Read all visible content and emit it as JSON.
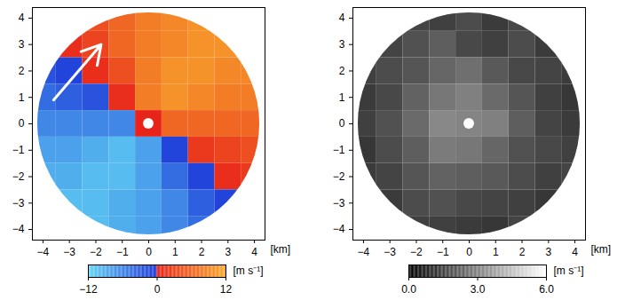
{
  "chart_data": [
    {
      "type": "heatmap",
      "x": [
        -4,
        -3,
        -2,
        -1,
        0,
        1,
        2,
        3,
        4
      ],
      "y": [
        4,
        3,
        2,
        1,
        0,
        -1,
        -2,
        -3,
        -4
      ],
      "values": [
        [
          null,
          null,
          4,
          6,
          8,
          9,
          10,
          null,
          null
        ],
        [
          null,
          1,
          3,
          6,
          8,
          9,
          10,
          10,
          null
        ],
        [
          -2,
          -1,
          1,
          4,
          8,
          10,
          10,
          9,
          9
        ],
        [
          -4,
          -3,
          -2,
          1,
          8,
          10,
          9,
          8,
          8
        ],
        [
          -6,
          -6,
          -6,
          -6,
          0,
          6,
          6,
          6,
          6
        ],
        [
          -8,
          -8,
          -9,
          -10,
          -8,
          -1,
          2,
          3,
          4
        ],
        [
          -9,
          -9,
          -10,
          -10,
          -8,
          -4,
          -1,
          1,
          2
        ],
        [
          null,
          -10,
          -10,
          -9,
          -8,
          -6,
          -3,
          -1,
          null
        ],
        [
          null,
          null,
          -10,
          -9,
          -8,
          -6,
          -4,
          null,
          null
        ]
      ],
      "xlim": [
        -4.4,
        4.4
      ],
      "ylim": [
        -4.4,
        4.4
      ],
      "xticks": [
        -4,
        -3,
        -2,
        -1,
        0,
        1,
        2,
        3,
        4
      ],
      "yticks": [
        -4,
        -3,
        -2,
        -1,
        0,
        1,
        2,
        3,
        4
      ],
      "x_label": "[km]",
      "radius": 4.2,
      "blind_radius": 0.2,
      "arrow": {
        "x1": -3.6,
        "y1": 0.9,
        "x2": -1.8,
        "y2": 3.0
      },
      "colorbar": {
        "range": [
          -12,
          12
        ],
        "ticks": [
          -12,
          0,
          12
        ],
        "label": "[m s⁻¹]",
        "colors": [
          "#62d6f4",
          "#1d37d8",
          "#e8231a",
          "#f8a82c"
        ]
      }
    },
    {
      "type": "heatmap",
      "x": [
        -4,
        -3,
        -2,
        -1,
        0,
        1,
        2,
        3,
        4
      ],
      "y": [
        4,
        3,
        2,
        1,
        0,
        -1,
        -2,
        -3,
        -4
      ],
      "values": [
        [
          null,
          null,
          1.6,
          1.5,
          1.8,
          1.4,
          1.7,
          null,
          null
        ],
        [
          null,
          1.6,
          1.9,
          2.2,
          1.7,
          1.5,
          1.8,
          1.4,
          null
        ],
        [
          1.5,
          1.8,
          2.0,
          2.4,
          2.6,
          2.1,
          1.7,
          1.6,
          1.4
        ],
        [
          1.4,
          1.7,
          2.3,
          2.8,
          3.0,
          2.5,
          2.0,
          1.5,
          1.3
        ],
        [
          1.5,
          1.9,
          2.5,
          3.2,
          3.1,
          3.0,
          2.2,
          1.6,
          1.4
        ],
        [
          1.3,
          1.8,
          2.2,
          2.9,
          2.8,
          2.4,
          1.9,
          1.7,
          1.5
        ],
        [
          1.4,
          1.6,
          2.0,
          2.3,
          2.2,
          2.1,
          1.8,
          1.5,
          1.6
        ],
        [
          null,
          1.4,
          1.8,
          1.9,
          1.7,
          1.6,
          1.5,
          1.3,
          null
        ],
        [
          null,
          null,
          1.5,
          1.5,
          1.4,
          1.3,
          1.6,
          null,
          null
        ]
      ],
      "xlim": [
        -4.4,
        4.4
      ],
      "ylim": [
        -4.4,
        4.4
      ],
      "xticks": [
        -4,
        -3,
        -2,
        -1,
        0,
        1,
        2,
        3,
        4
      ],
      "yticks": [
        -4,
        -3,
        -2,
        -1,
        0,
        1,
        2,
        3,
        4
      ],
      "x_label": "[km]",
      "radius": 4.2,
      "blind_radius": 0.2,
      "colorbar": {
        "range": [
          0,
          6
        ],
        "ticks": [
          0,
          3,
          6
        ],
        "label": "[m s⁻¹]",
        "colors": [
          "#000000",
          "#ffffff"
        ]
      }
    }
  ]
}
